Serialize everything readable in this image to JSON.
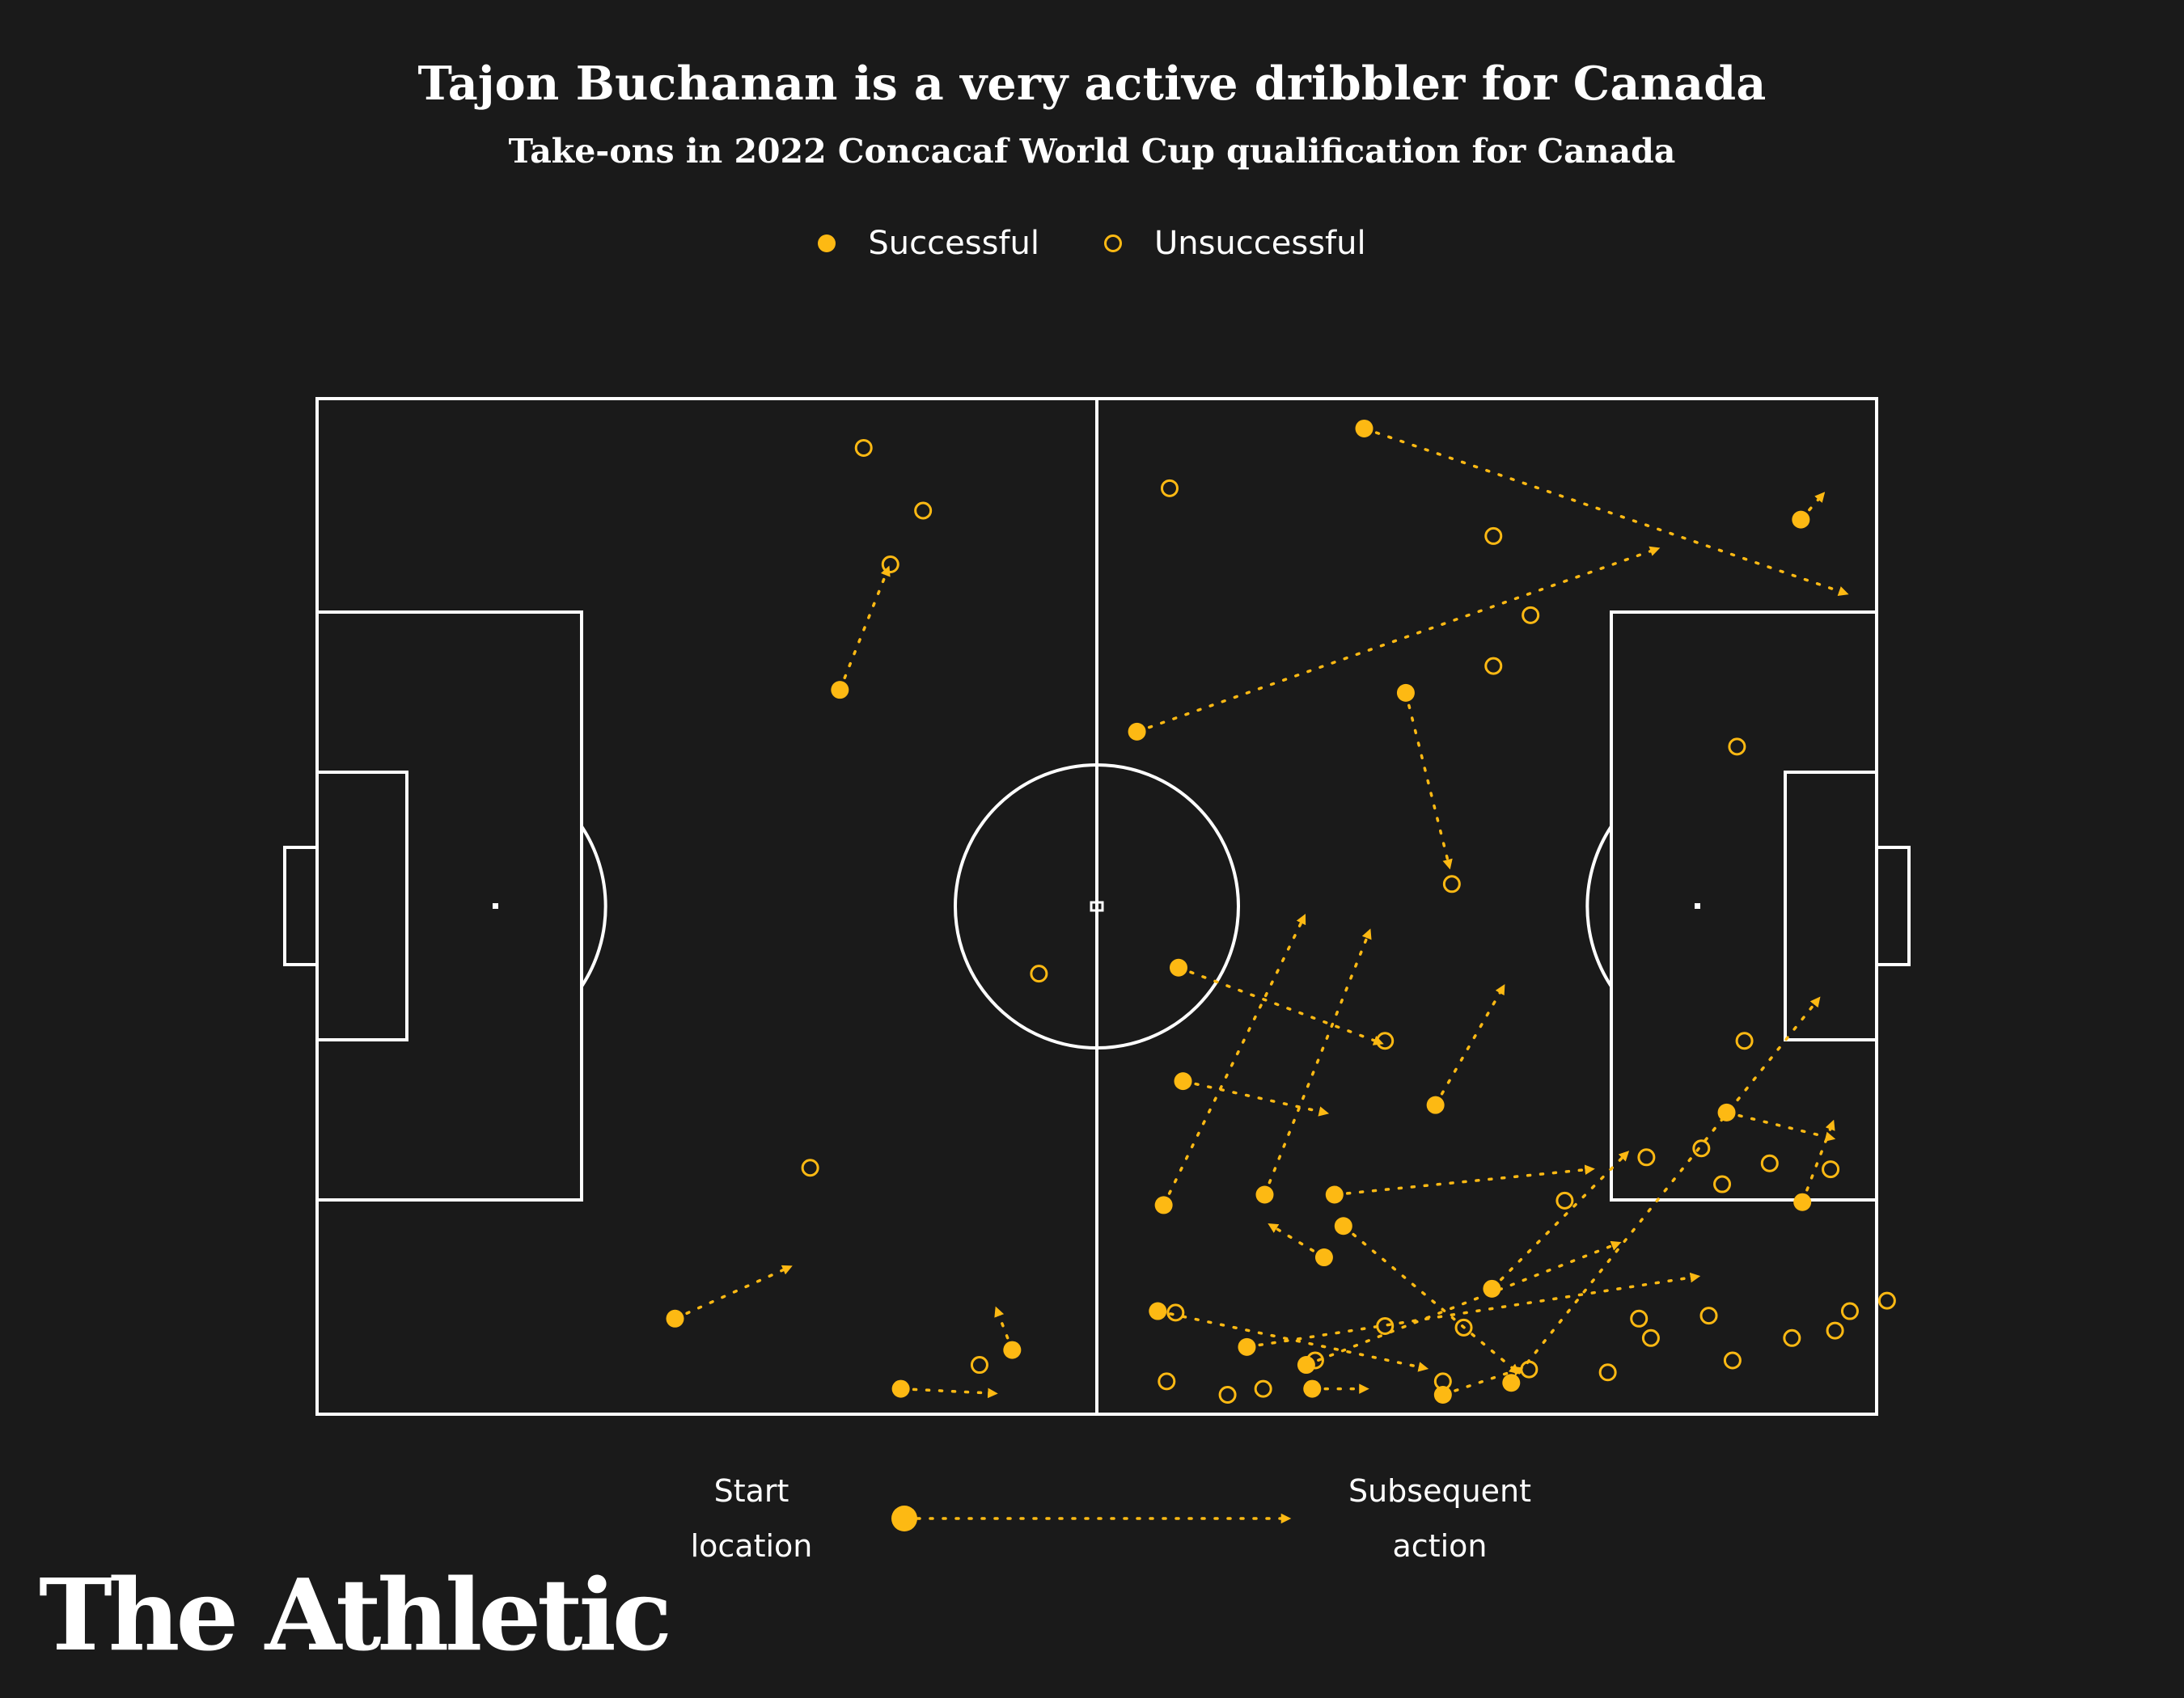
{
  "title": "Tajon Buchanan is a very active dribbler for Canada",
  "subtitle": "Take-ons in 2022 Concacaf World Cup qualification for Canada",
  "legend": {
    "successful": "Successful",
    "unsuccessful": "Unsuccessful"
  },
  "key": {
    "start_label": "Start location",
    "end_label": "Subsequent action"
  },
  "logo": "The Athletic",
  "colors": {
    "background": "#1a1a1a",
    "marker": "#fdb913",
    "pitch_lines": "#ffffff"
  },
  "chart_data": {
    "type": "scatter",
    "title": "Tajon Buchanan is a very active dribbler for Canada",
    "subtitle": "Take-ons in 2022 Concacaf World Cup qualification for Canada",
    "coordinate_system": "pitch 105 x 68 (length x width), attacking left to right",
    "xlim": [
      0,
      105
    ],
    "ylim": [
      0,
      68
    ],
    "successful": [
      {
        "start": [
          35.2,
          48.5
        ],
        "end": [
          38.4,
          56.5
        ]
      },
      {
        "start": [
          24.1,
          6.4
        ],
        "end": [
          31.7,
          9.8
        ]
      },
      {
        "start": [
          39.3,
          1.7
        ],
        "end": [
          45.5,
          1.4
        ]
      },
      {
        "start": [
          46.8,
          4.3
        ],
        "end": [
          45.8,
          6.9
        ]
      },
      {
        "start": [
          70.5,
          66.0
        ],
        "end": [
          102.8,
          55.0
        ]
      },
      {
        "start": [
          99.9,
          59.9
        ],
        "end": [
          101.3,
          61.5
        ]
      },
      {
        "start": [
          55.2,
          45.7
        ],
        "end": [
          90.1,
          57.9
        ]
      },
      {
        "start": [
          73.3,
          48.3
        ],
        "end": [
          76.2,
          36.8
        ]
      },
      {
        "start": [
          58.0,
          29.9
        ],
        "end": [
          71.5,
          24.9
        ]
      },
      {
        "start": [
          58.3,
          22.3
        ],
        "end": [
          67.8,
          20.2
        ]
      },
      {
        "start": [
          75.3,
          20.7
        ],
        "end": [
          79.8,
          28.5
        ]
      },
      {
        "start": [
          63.8,
          14.7
        ],
        "end": [
          70.8,
          32.2
        ]
      },
      {
        "start": [
          68.5,
          14.7
        ],
        "end": [
          85.7,
          16.4
        ]
      },
      {
        "start": [
          69.1,
          12.6
        ],
        "end": [
          80.7,
          2.9
        ]
      },
      {
        "start": [
          67.8,
          10.5
        ],
        "end": [
          64.3,
          12.6
        ]
      },
      {
        "start": [
          56.6,
          6.9
        ],
        "end": [
          74.5,
          3.1
        ]
      },
      {
        "start": [
          79.1,
          8.4
        ],
        "end": [
          88.1,
          17.4
        ]
      },
      {
        "start": [
          62.6,
          4.5
        ],
        "end": [
          92.8,
          9.2
        ]
      },
      {
        "start": [
          66.6,
          3.3
        ],
        "end": [
          87.5,
          11.4
        ]
      },
      {
        "start": [
          67.0,
          1.7
        ],
        "end": [
          70.5,
          1.7
        ]
      },
      {
        "start": [
          75.8,
          1.3
        ],
        "end": [
          80.9,
          3.0
        ]
      },
      {
        "start": [
          100.0,
          14.2
        ],
        "end": [
          102.0,
          19.4
        ]
      },
      {
        "start": [
          94.9,
          20.2
        ],
        "end": [
          101.9,
          18.5
        ]
      },
      {
        "start": [
          80.4,
          2.1
        ],
        "end": [
          101.0,
          27.7
        ]
      },
      {
        "start": [
          57.0,
          14.0
        ],
        "end": [
          66.4,
          33.2
        ]
      }
    ],
    "unsuccessful": [
      [
        36.8,
        64.7
      ],
      [
        40.8,
        60.5
      ],
      [
        38.6,
        56.9
      ],
      [
        33.2,
        16.5
      ],
      [
        48.6,
        29.5
      ],
      [
        44.6,
        3.3
      ],
      [
        57.4,
        62.0
      ],
      [
        79.2,
        58.8
      ],
      [
        81.7,
        53.5
      ],
      [
        79.2,
        50.1
      ],
      [
        95.6,
        44.7
      ],
      [
        76.4,
        35.5
      ],
      [
        71.9,
        25.0
      ],
      [
        96.1,
        25.0
      ],
      [
        93.2,
        17.8
      ],
      [
        89.5,
        17.2
      ],
      [
        97.8,
        16.8
      ],
      [
        101.9,
        16.4
      ],
      [
        94.6,
        15.4
      ],
      [
        84.0,
        14.3
      ],
      [
        57.8,
        6.8
      ],
      [
        71.9,
        5.9
      ],
      [
        77.2,
        5.8
      ],
      [
        89.0,
        6.4
      ],
      [
        93.7,
        6.6
      ],
      [
        105.7,
        7.6
      ],
      [
        103.2,
        6.9
      ],
      [
        89.8,
        5.1
      ],
      [
        95.3,
        3.6
      ],
      [
        99.3,
        5.1
      ],
      [
        102.2,
        5.6
      ],
      [
        86.9,
        2.8
      ],
      [
        57.2,
        2.2
      ],
      [
        61.3,
        1.3
      ],
      [
        63.7,
        1.7
      ],
      [
        75.8,
        2.2
      ],
      [
        81.6,
        3.0
      ],
      [
        67.2,
        3.6
      ]
    ]
  }
}
